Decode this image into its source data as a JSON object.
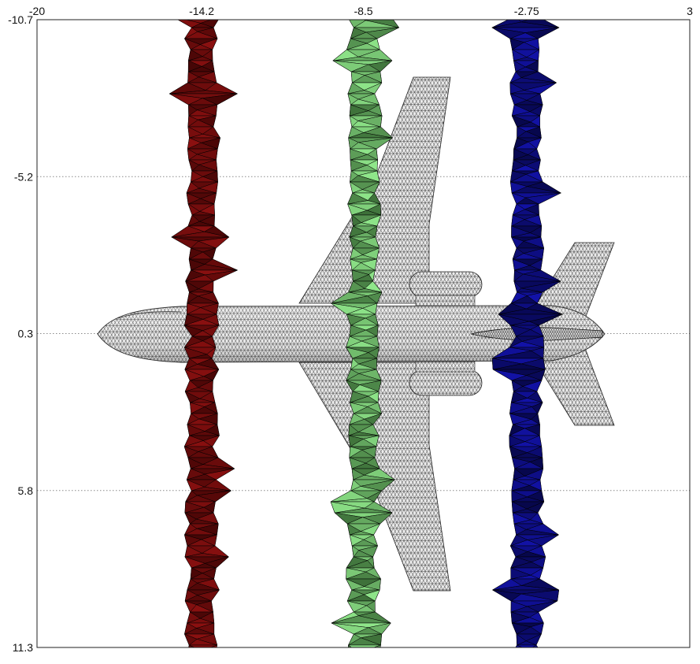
{
  "x_axis": {
    "range": [
      -20,
      3
    ],
    "ticks": [
      {
        "value": -20,
        "label": "-20"
      },
      {
        "value": -14.2,
        "label": "-14.2"
      },
      {
        "value": -8.5,
        "label": "-8.5"
      },
      {
        "value": -2.75,
        "label": "-2.75"
      },
      {
        "value": 3,
        "label": "3"
      }
    ],
    "position": "top"
  },
  "y_axis": {
    "range": [
      -10.7,
      11.3
    ],
    "ticks": [
      {
        "value": -10.7,
        "label": "-10.7"
      },
      {
        "value": -5.2,
        "label": "-5.2"
      },
      {
        "value": 0.3,
        "label": "0.3"
      },
      {
        "value": 5.8,
        "label": "5.8"
      },
      {
        "value": 11.3,
        "label": "11.3"
      }
    ],
    "inverted": true,
    "grid": "horizontal dotted"
  },
  "object": {
    "name": "aircraft",
    "mesh": "triangulated surface",
    "color": "#e6e6e6",
    "edge_color": "#1a1a1a"
  },
  "isosurfaces": [
    {
      "name": "red",
      "x_center": -14.2,
      "color": "#8b1010",
      "dark": "#3a0404"
    },
    {
      "name": "green",
      "x_center": -8.5,
      "color": "#8fe68a",
      "dark": "#2e5a2a"
    },
    {
      "name": "blue",
      "x_center": -2.75,
      "color": "#1212a8",
      "dark": "#05053a"
    }
  ]
}
